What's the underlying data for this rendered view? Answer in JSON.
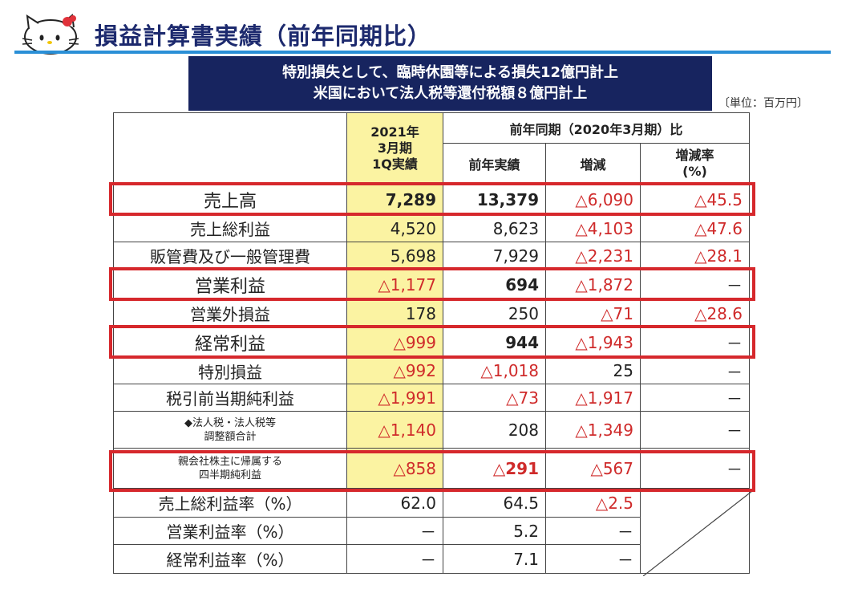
{
  "title": "損益計算書実績（前年同期比）",
  "banner": {
    "line1": "特別損失として、臨時休園等による損失12億円計上",
    "line2": "米国において法人税等還付税額８億円計上"
  },
  "unit": "〔単位：百万円〕",
  "header": {
    "current_line1": "2021年",
    "current_line2": "3月期",
    "current_line3": "1Q実績",
    "compare": "前年同期（2020年3月期）比",
    "prev": "前年実績",
    "change": "増減",
    "rate_line1": "増減率",
    "rate_line2": "(%)"
  },
  "rows": [
    {
      "label": "売上高",
      "current": "7,289",
      "prev": "13,379",
      "change": "△6,090",
      "rate": "△45.5"
    },
    {
      "label": "売上総利益",
      "current": "4,520",
      "prev": "8,623",
      "change": "△4,103",
      "rate": "△47.6"
    },
    {
      "label": "販管費及び一般管理費",
      "current": "5,698",
      "prev": "7,929",
      "change": "△2,231",
      "rate": "△28.1"
    },
    {
      "label": "営業利益",
      "current": "△1,177",
      "prev": "694",
      "change": "△1,872",
      "rate": "－"
    },
    {
      "label": "営業外損益",
      "current": "178",
      "prev": "250",
      "change": "△71",
      "rate": "△28.6"
    },
    {
      "label": "経常利益",
      "current": "△999",
      "prev": "944",
      "change": "△1,943",
      "rate": "－"
    },
    {
      "label": "特別損益",
      "current": "△992",
      "prev": "△1,018",
      "change": "25",
      "rate": "－"
    },
    {
      "label": "税引前当期純利益",
      "current": "△1,991",
      "prev": "△73",
      "change": "△1,917",
      "rate": "－"
    },
    {
      "label_line1": "◆法人税・法人税等",
      "label_line2": "調整額合計",
      "current": "△1,140",
      "prev": "208",
      "change": "△1,349",
      "rate": "－"
    },
    {
      "label_line1": "親会社株主に帰属する",
      "label_line2": "四半期純利益",
      "current": "△858",
      "prev": "△291",
      "change": "△567",
      "rate": "－"
    },
    {
      "label": "売上総利益率（%）",
      "current": "62.0",
      "prev": "64.5",
      "change": "△2.5"
    },
    {
      "label": "営業利益率（%）",
      "current": "－",
      "prev": "5.2",
      "change": "－"
    },
    {
      "label": "経常利益率（%）",
      "current": "－",
      "prev": "7.1",
      "change": "－"
    }
  ]
}
